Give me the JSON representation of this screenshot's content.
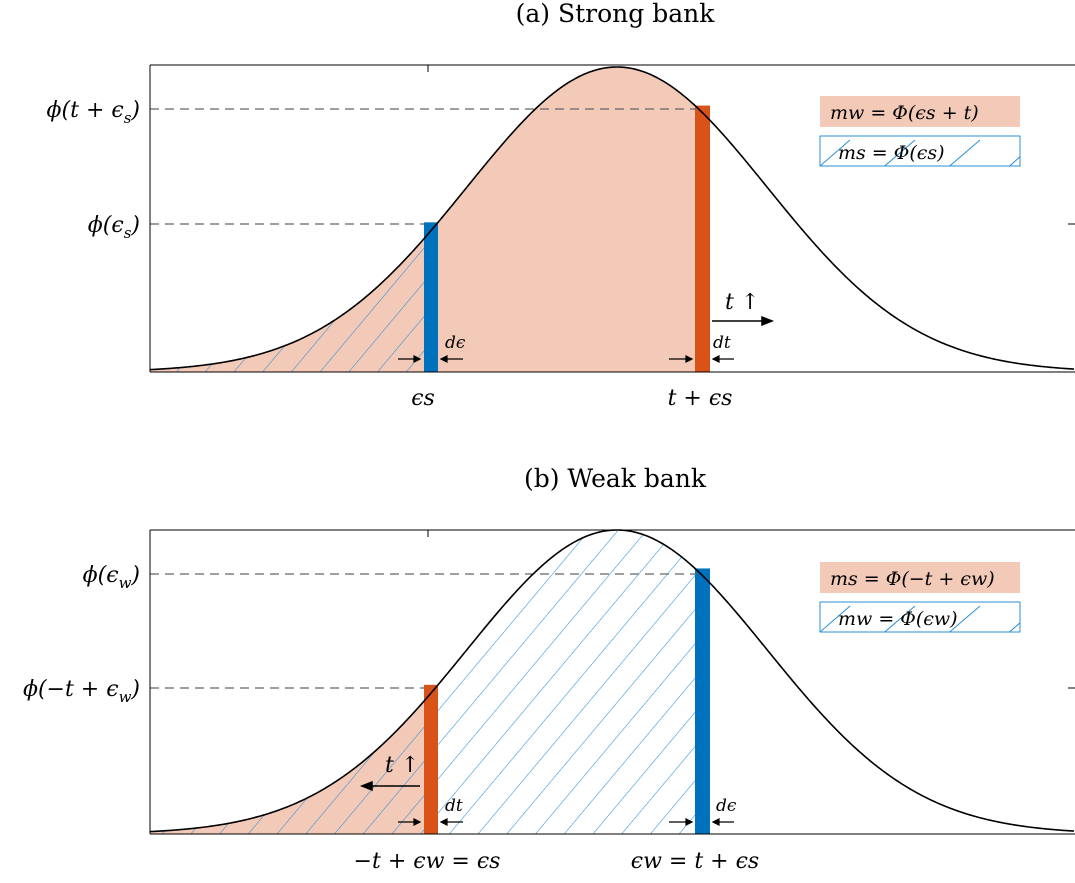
{
  "panels": [
    {
      "title": "(a) Strong bank",
      "y_labels": [
        "ϕ(t + ϵ",
        "ϕ(ϵ"
      ],
      "y_label_subs": [
        "s",
        "s"
      ],
      "x_labels": [
        "ϵs",
        "t + ϵs"
      ],
      "left_bar_label": "dϵ",
      "right_bar_label": "dt",
      "arrow_label": "t ↑",
      "legend": [
        "mw = Φ(ϵs + t)",
        "ms = Φ(ϵs)"
      ]
    },
    {
      "title": "(b) Weak bank",
      "y_labels": [
        "ϕ(ϵ",
        "ϕ(−t + ϵ"
      ],
      "y_label_subs": [
        "w",
        "w"
      ],
      "x_labels": [
        "−t + ϵw = ϵs",
        "ϵw = t + ϵs"
      ],
      "left_bar_label": "dt",
      "right_bar_label": "dϵ",
      "arrow_label": "t ↑",
      "legend": [
        "ms = Φ(−t + ϵw)",
        "mw = Φ(ϵw)"
      ]
    }
  ],
  "colors": {
    "orange_fill": "#f3c9b8",
    "orange_bar": "#d95319",
    "blue_bar": "#0072bd",
    "hatch": "#2a8fd6",
    "curve": "#000000"
  }
}
